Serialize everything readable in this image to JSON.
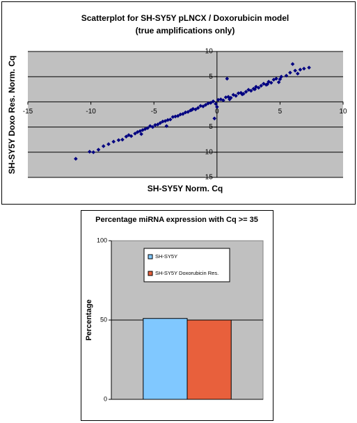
{
  "chart_data": [
    {
      "type": "scatter",
      "title": "Scatterplot for SH-SY5Y pLNCX / Doxorubicin model",
      "subtitle": "(true amplifications only)",
      "x_label": "SH-SY5Y Norm. Cq",
      "y_label": "SH-SY5Y Doxo Res. Norm. Cq",
      "color": "#000080",
      "xlim": [
        -15,
        10
      ],
      "ylim": [
        -15,
        10
      ],
      "xticks": [
        -15,
        -10,
        -5,
        0,
        5,
        10
      ],
      "yticks": [
        10,
        5,
        {
          "value": -5,
          "label": "5"
        },
        {
          "value": -10,
          "label": "10"
        },
        {
          "value": -15,
          "label": "15"
        }
      ],
      "grid": true,
      "x": [
        -11.2,
        -10.1,
        -9.8,
        -9.4,
        -9.0,
        -8.6,
        -8.2,
        -7.8,
        -7.5,
        -7.2,
        -7.0,
        -6.8,
        -6.5,
        -6.3,
        -6.1,
        -5.9,
        -5.7,
        -5.5,
        -5.3,
        -5.1,
        -4.9,
        -4.7,
        -4.5,
        -4.3,
        -4.1,
        -3.9,
        -3.7,
        -3.5,
        -3.3,
        -3.1,
        -2.9,
        -2.7,
        -2.5,
        -2.3,
        -2.1,
        -1.9,
        -1.7,
        -1.5,
        -1.3,
        -1.1,
        -0.9,
        -0.7,
        -0.5,
        -0.3,
        -0.1,
        0.1,
        0.3,
        0.5,
        0.7,
        0.9,
        1.1,
        1.3,
        1.5,
        1.7,
        1.9,
        2.1,
        2.3,
        2.5,
        2.7,
        2.9,
        3.1,
        3.3,
        3.5,
        3.7,
        3.9,
        4.1,
        4.3,
        4.5,
        4.7,
        4.9,
        5.1,
        5.5,
        5.8,
        6.0,
        6.2,
        6.4,
        6.6,
        6.9,
        7.3,
        -4.0,
        -2.0,
        0.0,
        1.0,
        2.0,
        3.0,
        4.0,
        5.0,
        -6.0,
        0.8,
        -0.2
      ],
      "y": [
        -11.3,
        -9.9,
        -10.0,
        -9.5,
        -8.8,
        -8.4,
        -7.9,
        -7.6,
        -7.5,
        -6.9,
        -6.6,
        -6.8,
        -6.3,
        -6.0,
        -5.8,
        -5.6,
        -5.4,
        -5.2,
        -4.8,
        -5.0,
        -4.6,
        -4.5,
        -4.2,
        -3.9,
        -3.8,
        -3.6,
        -3.5,
        -3.0,
        -2.9,
        -2.8,
        -2.5,
        -2.4,
        -2.1,
        -2.0,
        -1.7,
        -1.4,
        -1.5,
        -1.2,
        -0.8,
        -0.9,
        -0.6,
        -0.3,
        -0.2,
        0.1,
        -0.4,
        0.4,
        0.5,
        0.3,
        0.9,
        1.0,
        0.8,
        1.4,
        1.2,
        1.7,
        1.8,
        1.6,
        2.0,
        2.4,
        2.2,
        2.6,
        3.0,
        2.8,
        3.2,
        3.6,
        3.4,
        4.0,
        3.8,
        4.4,
        4.6,
        3.9,
        5.0,
        5.2,
        5.8,
        7.5,
        6.2,
        5.6,
        6.4,
        6.6,
        6.8,
        -4.8,
        -1.6,
        -1.0,
        0.5,
        1.5,
        2.5,
        3.5,
        4.5,
        -6.4,
        4.6,
        -3.3
      ]
    },
    {
      "type": "bar",
      "title": "Percentage miRNA expression with Cq >= 35",
      "y_label": "Percentage",
      "categories": [
        null
      ],
      "series": [
        {
          "name": "SH-SY5Y",
          "color": "#80c8ff",
          "values": [
            51
          ]
        },
        {
          "name": "SH-SY5Y Doxorubicin Res.",
          "color": "#e8603c",
          "values": [
            50
          ]
        }
      ],
      "ylim": [
        0,
        100
      ],
      "yticks": [
        0,
        50,
        100
      ],
      "grid": true
    }
  ]
}
